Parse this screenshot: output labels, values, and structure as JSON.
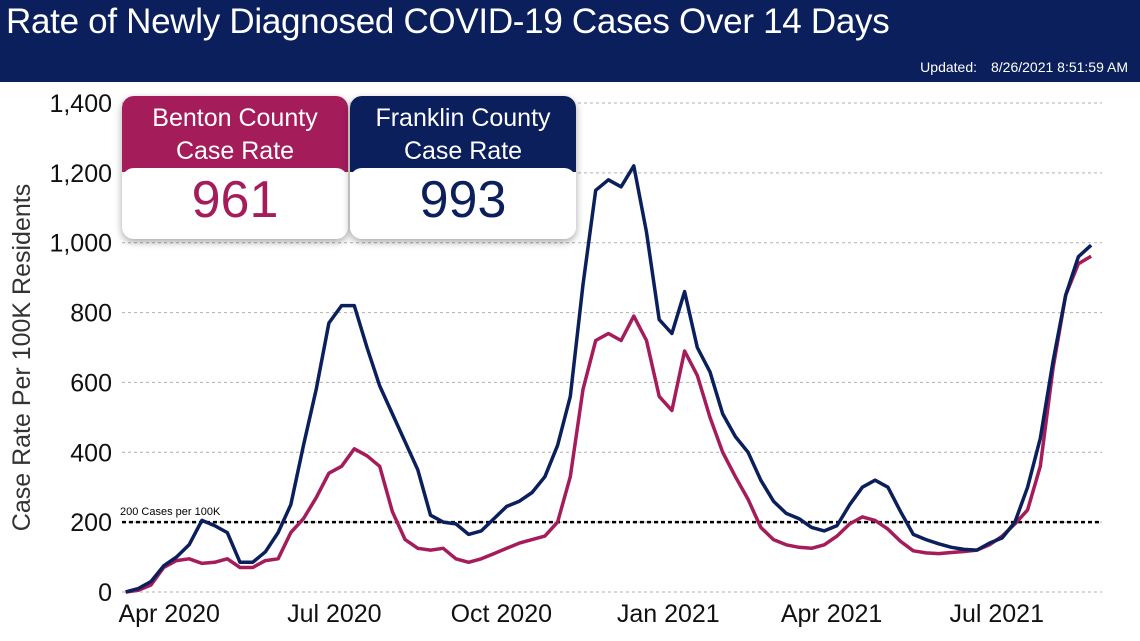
{
  "header": {
    "title": "Rate of Newly Diagnosed COVID-19 Cases Over 14 Days",
    "updated_label": "Updated:",
    "updated_value": "8/26/2021 8:51:59 AM"
  },
  "cards": [
    {
      "title_line1": "Benton County",
      "title_line2": "Case Rate",
      "value": "961",
      "color": "#a51c5b"
    },
    {
      "title_line1": "Franklin County",
      "title_line2": "Case Rate",
      "value": "993",
      "color": "#0b1f5c"
    }
  ],
  "chart_data": {
    "type": "line",
    "ylabel": "Case Rate Per 100K Residents",
    "ylim": [
      0,
      1400
    ],
    "yticks": [
      0,
      200,
      400,
      600,
      800,
      1000,
      1200,
      1400
    ],
    "ytick_labels": [
      "0",
      "200",
      "400",
      "600",
      "800",
      "1,000",
      "1,200",
      "1,400"
    ],
    "xlim": [
      "2020-03-06",
      "2021-08-28"
    ],
    "xticks": [
      "2020-04-01",
      "2020-07-01",
      "2020-10-01",
      "2021-01-01",
      "2021-04-01",
      "2021-07-01"
    ],
    "xtick_labels": [
      "Apr 2020",
      "Jul 2020",
      "Oct 2020",
      "Jan 2021",
      "Apr 2021",
      "Jul 2021"
    ],
    "grid": "horizontal dashed",
    "reference_line": {
      "value": 200,
      "label": "200 Cases per 100K"
    },
    "x": [
      "2020-03-08",
      "2020-03-15",
      "2020-03-22",
      "2020-03-29",
      "2020-04-05",
      "2020-04-12",
      "2020-04-19",
      "2020-04-26",
      "2020-05-03",
      "2020-05-10",
      "2020-05-17",
      "2020-05-24",
      "2020-05-31",
      "2020-06-07",
      "2020-06-14",
      "2020-06-21",
      "2020-06-28",
      "2020-07-05",
      "2020-07-12",
      "2020-07-19",
      "2020-07-26",
      "2020-08-02",
      "2020-08-09",
      "2020-08-16",
      "2020-08-23",
      "2020-08-30",
      "2020-09-06",
      "2020-09-13",
      "2020-09-20",
      "2020-09-27",
      "2020-10-04",
      "2020-10-11",
      "2020-10-18",
      "2020-10-25",
      "2020-11-01",
      "2020-11-08",
      "2020-11-15",
      "2020-11-22",
      "2020-11-29",
      "2020-12-06",
      "2020-12-13",
      "2020-12-20",
      "2020-12-27",
      "2021-01-03",
      "2021-01-10",
      "2021-01-17",
      "2021-01-24",
      "2021-01-31",
      "2021-02-07",
      "2021-02-14",
      "2021-02-21",
      "2021-02-28",
      "2021-03-07",
      "2021-03-14",
      "2021-03-21",
      "2021-03-28",
      "2021-04-04",
      "2021-04-11",
      "2021-04-18",
      "2021-04-25",
      "2021-05-02",
      "2021-05-09",
      "2021-05-16",
      "2021-05-23",
      "2021-05-30",
      "2021-06-06",
      "2021-06-13",
      "2021-06-20",
      "2021-06-27",
      "2021-07-04",
      "2021-07-11",
      "2021-07-18",
      "2021-07-25",
      "2021-08-01",
      "2021-08-08",
      "2021-08-15",
      "2021-08-22"
    ],
    "series": [
      {
        "name": "Benton County",
        "color": "#a51c5b",
        "values": [
          0,
          5,
          20,
          70,
          90,
          95,
          82,
          85,
          95,
          70,
          70,
          90,
          95,
          170,
          210,
          270,
          340,
          360,
          410,
          390,
          360,
          230,
          150,
          125,
          120,
          125,
          95,
          85,
          95,
          110,
          125,
          140,
          150,
          160,
          200,
          330,
          580,
          720,
          740,
          720,
          790,
          720,
          560,
          520,
          690,
          620,
          500,
          400,
          330,
          265,
          185,
          150,
          135,
          128,
          125,
          135,
          160,
          195,
          215,
          205,
          180,
          145,
          118,
          112,
          110,
          113,
          116,
          120,
          135,
          160,
          195,
          235,
          360,
          640,
          850,
          940,
          961
        ]
      },
      {
        "name": "Franklin County",
        "color": "#0b1f5c",
        "values": [
          0,
          10,
          30,
          75,
          100,
          135,
          205,
          190,
          170,
          85,
          85,
          115,
          170,
          250,
          420,
          580,
          770,
          820,
          820,
          700,
          590,
          510,
          430,
          350,
          220,
          200,
          195,
          165,
          175,
          210,
          245,
          260,
          285,
          330,
          420,
          560,
          880,
          1150,
          1180,
          1160,
          1220,
          1030,
          780,
          740,
          860,
          700,
          630,
          510,
          445,
          400,
          320,
          260,
          225,
          210,
          185,
          175,
          190,
          250,
          300,
          320,
          300,
          230,
          165,
          150,
          138,
          128,
          122,
          120,
          140,
          155,
          200,
          300,
          440,
          660,
          850,
          960,
          993
        ]
      }
    ]
  }
}
